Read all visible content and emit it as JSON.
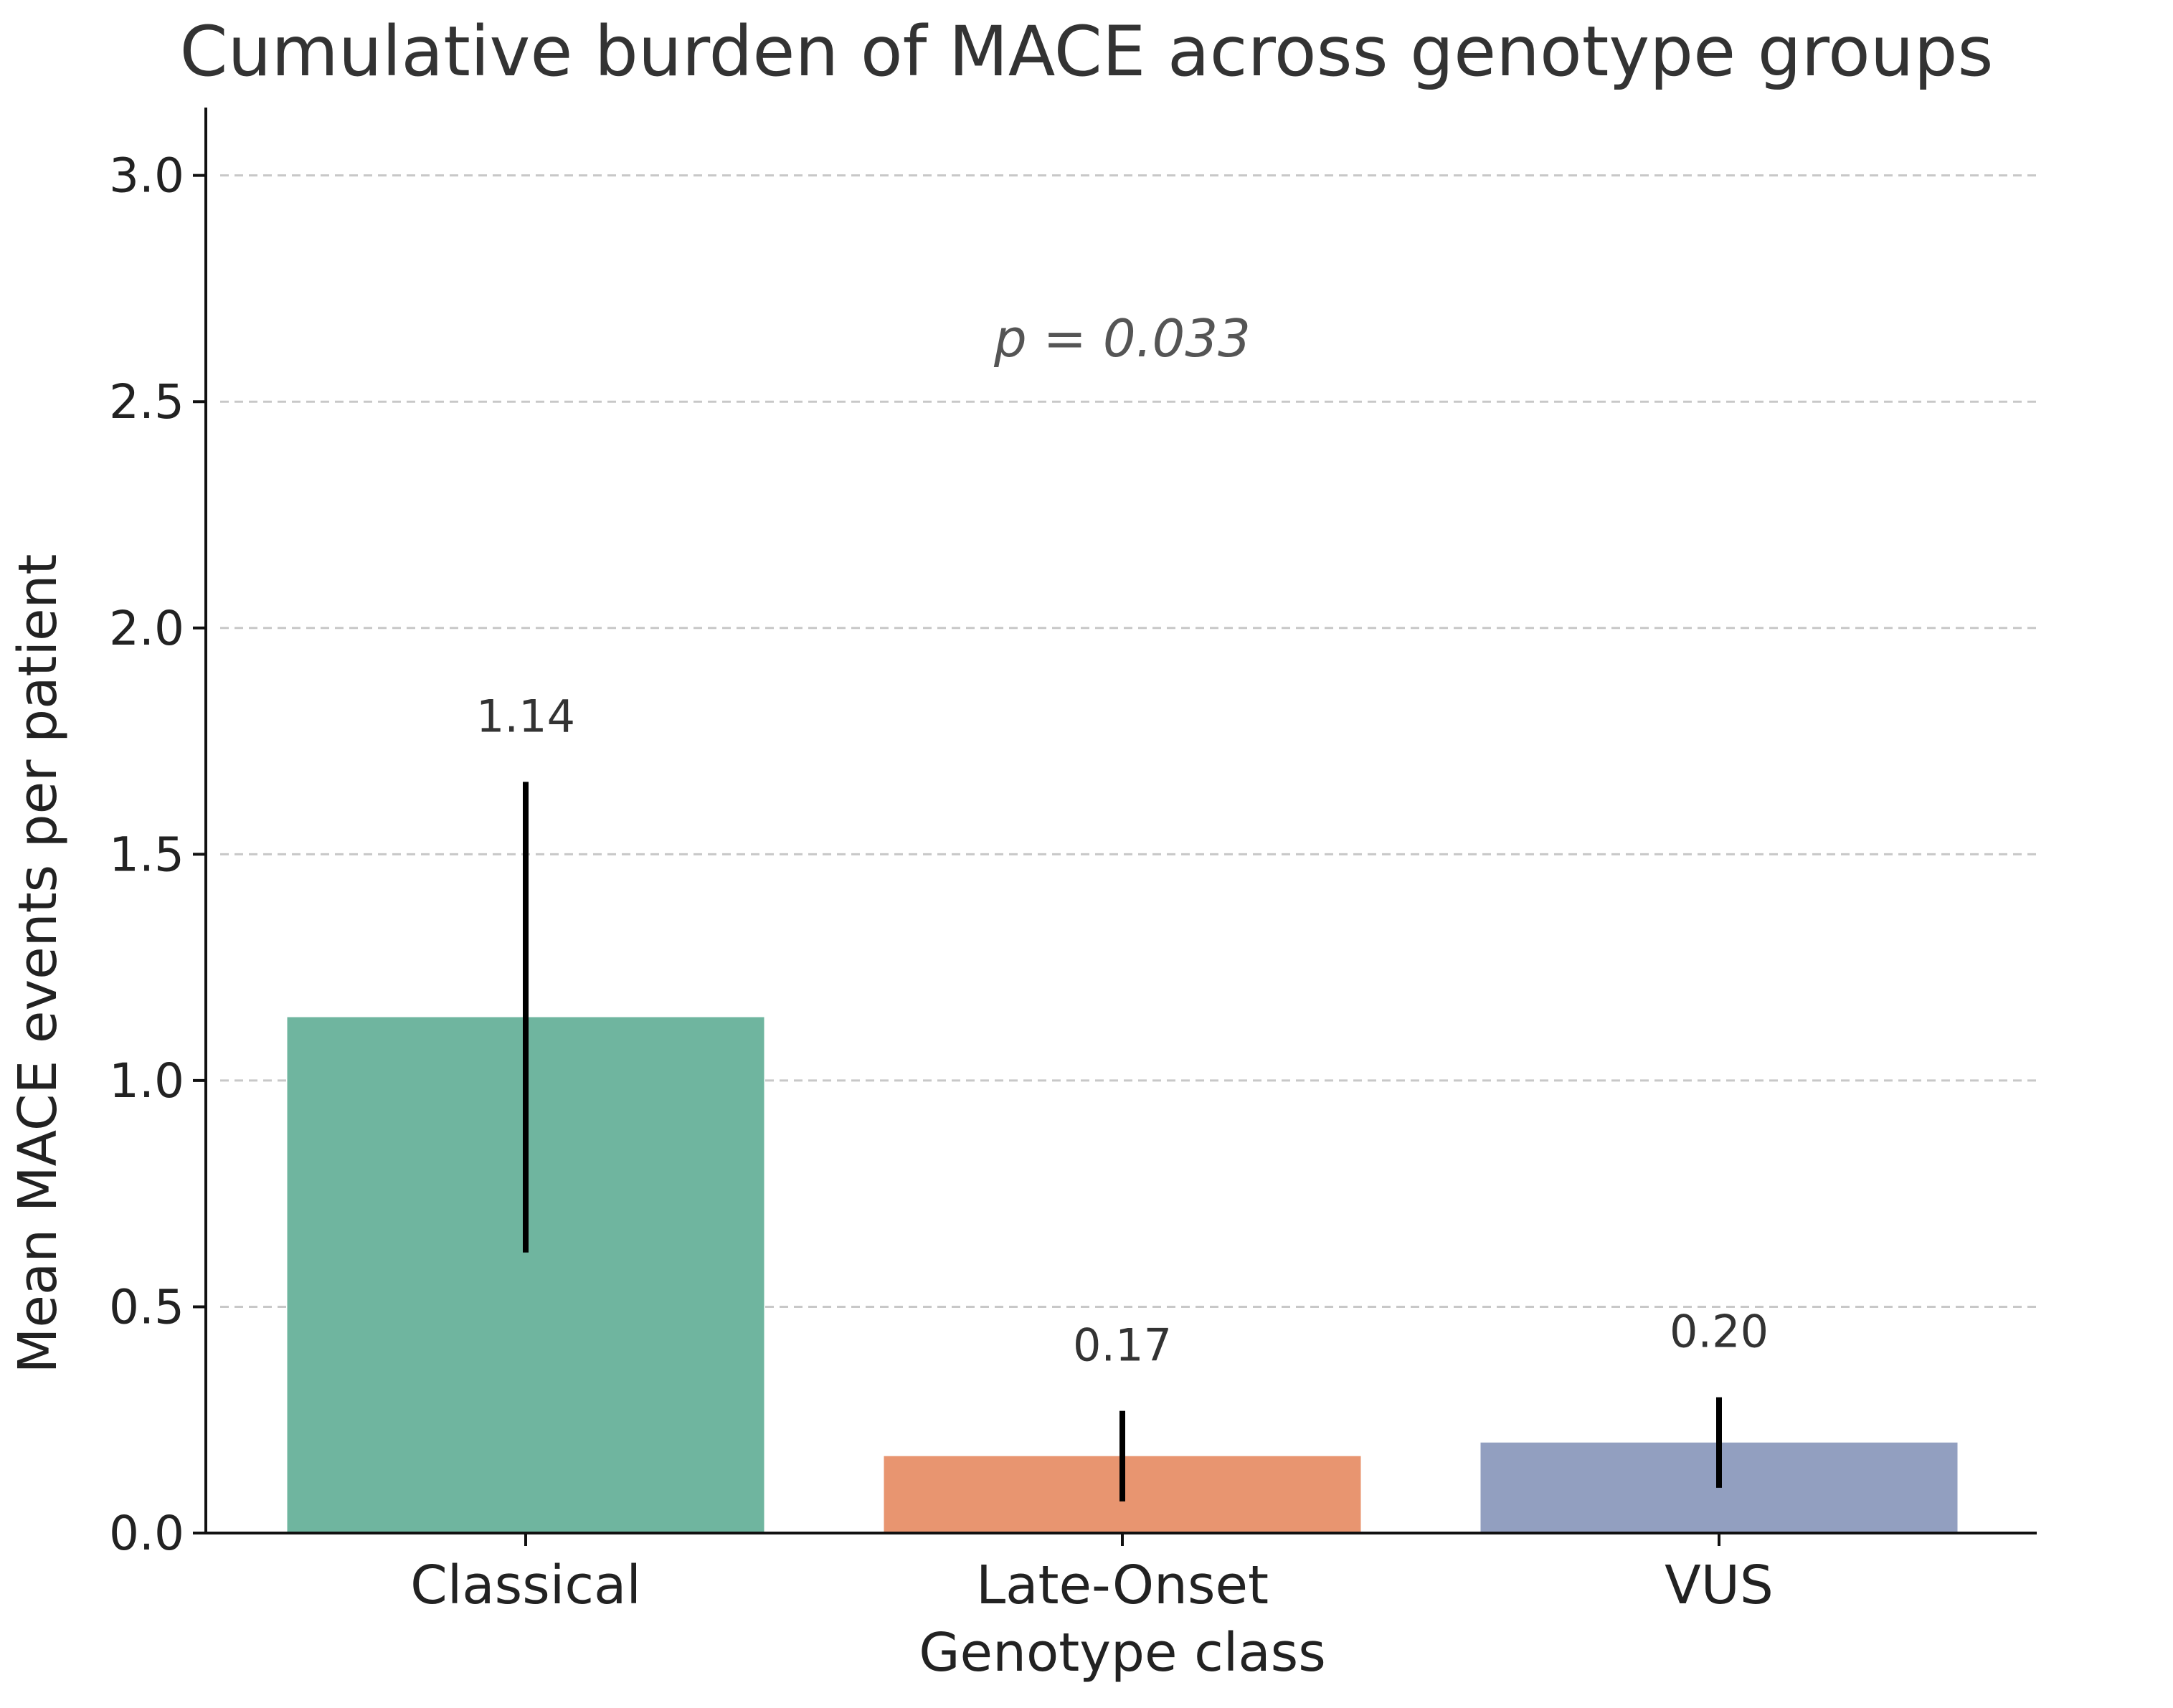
{
  "chart_data": {
    "type": "bar",
    "title": "Cumulative burden of MACE across genotype groups",
    "xlabel": "Genotype class",
    "ylabel": "Mean MACE events per patient",
    "categories": [
      "Classical",
      "Late-Onset",
      "VUS"
    ],
    "values": [
      1.14,
      0.17,
      0.2
    ],
    "value_labels": [
      "1.14",
      "0.17",
      "0.20"
    ],
    "error_low": [
      0.62,
      0.07,
      0.1
    ],
    "error_high": [
      1.66,
      0.27,
      0.3
    ],
    "colors": [
      "#6fb59f",
      "#e89570",
      "#929fc0"
    ],
    "ylim": [
      0,
      3.15
    ],
    "yticks": [
      0.0,
      0.5,
      1.0,
      1.5,
      2.0,
      2.5,
      3.0
    ],
    "ytick_labels": [
      "0.0",
      "0.5",
      "1.0",
      "1.5",
      "2.0",
      "2.5",
      "3.0"
    ],
    "grid": true,
    "annotation": {
      "text": "p = 0.033",
      "x": 1.0,
      "y": 2.6
    }
  }
}
